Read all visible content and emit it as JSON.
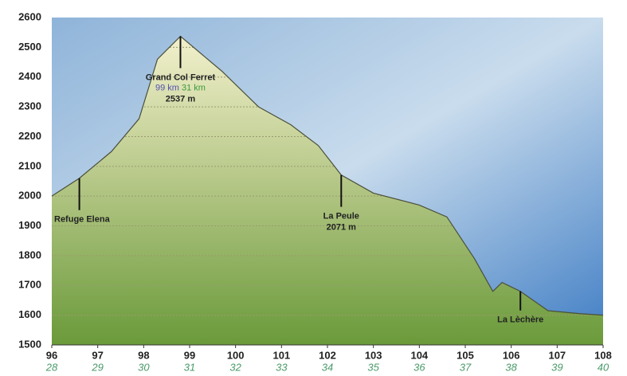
{
  "chart_data": {
    "type": "area",
    "x": [
      96,
      96.6,
      97.3,
      97.9,
      98.3,
      98.8,
      99.7,
      100.5,
      101.2,
      101.8,
      102.3,
      103.0,
      104.0,
      104.6,
      105.2,
      105.6,
      105.8,
      106.2,
      106.8,
      107.5,
      108
    ],
    "series": [
      {
        "values": [
          2000,
          2060,
          2150,
          2260,
          2460,
          2537,
          2420,
          2300,
          2240,
          2170,
          2071,
          2010,
          1970,
          1930,
          1790,
          1680,
          1710,
          1680,
          1615,
          1605,
          1600
        ],
        "color": "#4a4f3a"
      }
    ],
    "xlim": [
      96,
      108
    ],
    "xticks": [
      96,
      97,
      98,
      99,
      100,
      101,
      102,
      103,
      104,
      105,
      106,
      107,
      108
    ],
    "x2lim": [
      28,
      40
    ],
    "x2ticks": [
      28,
      29,
      30,
      31,
      32,
      33,
      34,
      35,
      36,
      37,
      38,
      39,
      40
    ],
    "ylim": [
      1500,
      2600
    ],
    "yticks": [
      1500,
      1600,
      1700,
      1800,
      1900,
      2000,
      2100,
      2200,
      2300,
      2400,
      2500,
      2600
    ],
    "grid": true,
    "annotations": [
      {
        "x": 98.8,
        "text": "Grand Col Ferret",
        "km": "99 km",
        "km2": "31 km",
        "elevation": "2537 m"
      },
      {
        "x": 96.6,
        "text": "Refuge Elena"
      },
      {
        "x": 102.3,
        "text": "La Peule",
        "elevation": "2071 m"
      },
      {
        "x": 106.2,
        "text": "La Lèchère"
      }
    ]
  }
}
